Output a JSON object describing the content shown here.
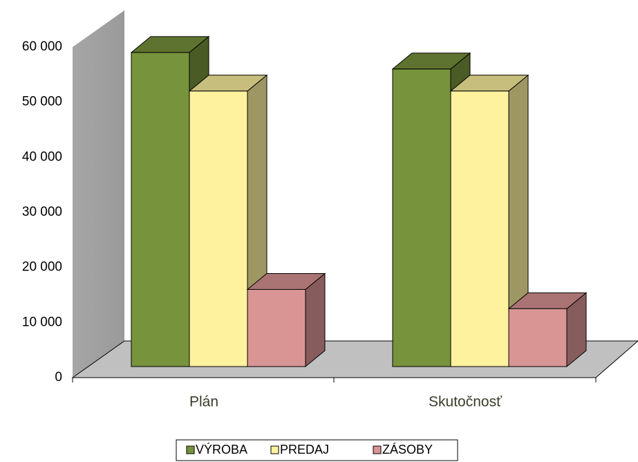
{
  "chart_data": {
    "type": "bar3d",
    "categories": [
      "Plán",
      "Skutočnosť"
    ],
    "series": [
      {
        "name": "VÝROBA",
        "color": "#77933c",
        "values": [
          57000,
          54000
        ]
      },
      {
        "name": "PREDAJ",
        "color": "#fff29f",
        "values": [
          50000,
          50000
        ]
      },
      {
        "name": "ZÁSOBY",
        "color": "#d99594",
        "values": [
          14000,
          10500
        ]
      }
    ],
    "ylim": [
      0,
      60000
    ],
    "yticks": [
      0,
      {
        "value": 10000,
        "label": "10 000"
      },
      {
        "value": 20000,
        "label": "20 000"
      },
      {
        "value": 30000,
        "label": "30 000"
      },
      {
        "value": 40000,
        "label": "40 000"
      },
      {
        "value": 50000,
        "label": "50 000"
      },
      {
        "value": 60000,
        "label": "60 000"
      }
    ],
    "legend": "bottom"
  }
}
